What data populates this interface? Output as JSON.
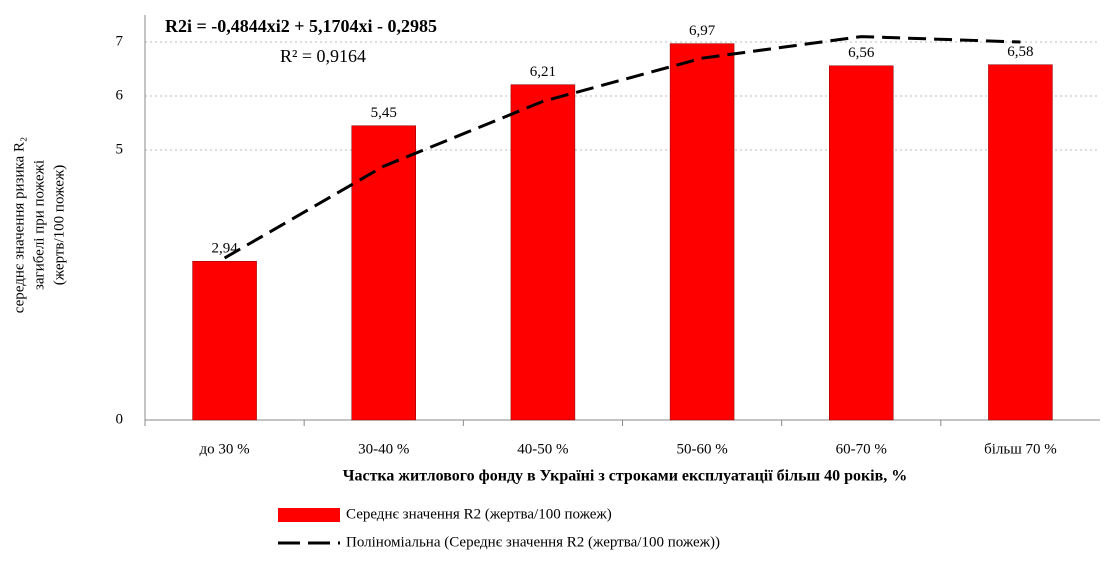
{
  "chart_data": {
    "type": "bar",
    "equation": "R2i = -0,4844xi2 + 5,1704xi - 0,2985",
    "r_squared": "R² = 0,9164",
    "y_label": [
      "середнє значення ризика R₂",
      "загибелі при пожежі",
      "(жертв/100 пожеж)"
    ],
    "x_label": "Частка житлового фонду в Україні з строками експлуатації більш 40 років, %",
    "categories": [
      "до 30 %",
      "30-40 %",
      "40-50 %",
      "50-60 %",
      "60-70 %",
      "більш 70 %"
    ],
    "ylim": [
      0,
      7.5
    ],
    "yticks": [
      0,
      5,
      6,
      7
    ],
    "grid": true,
    "series": [
      {
        "name": "Середнє значення R2 (жертва/100 пожеж)",
        "color": "#ff0000",
        "values": [
          2.94,
          5.45,
          6.21,
          6.97,
          6.56,
          6.58
        ],
        "value_labels": [
          "2,94",
          "5,45",
          "6,21",
          "6,97",
          "6,56",
          "6,58"
        ]
      },
      {
        "name": "Поліноміальна (Середнє значення R2 (жертва/100 пожеж))",
        "color": "#000000",
        "type": "line",
        "values": [
          3.0,
          4.7,
          5.9,
          6.7,
          7.1,
          7.0
        ]
      }
    ],
    "legend": "bottom"
  }
}
